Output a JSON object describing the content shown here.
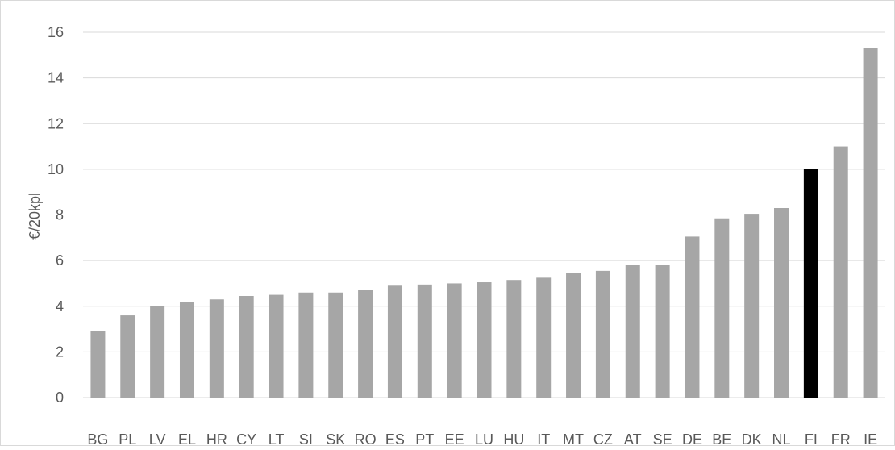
{
  "chart_data": {
    "type": "bar",
    "title": "",
    "xlabel": "",
    "ylabel": "€/20kpl",
    "ylim": [
      0,
      16
    ],
    "yticks": [
      0,
      2,
      4,
      6,
      8,
      10,
      12,
      14,
      16
    ],
    "grid": true,
    "legend": "none",
    "categories": [
      "BG",
      "PL",
      "LV",
      "EL",
      "HR",
      "CY",
      "LT",
      "SI",
      "SK",
      "RO",
      "ES",
      "PT",
      "EE",
      "LU",
      "HU",
      "IT",
      "MT",
      "CZ",
      "AT",
      "SE",
      "DE",
      "BE",
      "DK",
      "NL",
      "FI",
      "FR",
      "IE"
    ],
    "values": [
      2.9,
      3.6,
      4.0,
      4.2,
      4.3,
      4.45,
      4.5,
      4.6,
      4.6,
      4.7,
      4.9,
      4.95,
      5.0,
      5.05,
      5.15,
      5.25,
      5.45,
      5.55,
      5.8,
      5.8,
      7.05,
      7.85,
      8.05,
      8.3,
      10.0,
      11.0,
      15.3
    ],
    "highlight_category": "FI",
    "colors": {
      "bar": "#a6a6a6",
      "highlight": "#000000",
      "grid": "#d9d9d9",
      "text": "#595959"
    }
  }
}
